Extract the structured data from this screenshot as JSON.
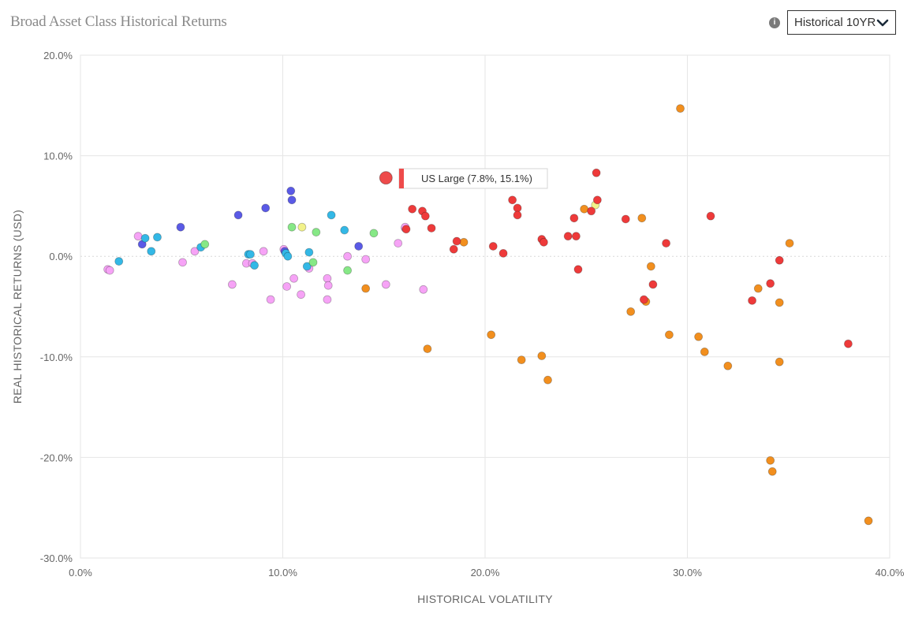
{
  "header": {
    "title": "Broad Asset Class Historical Returns",
    "info_icon": "info-icon",
    "period_select": {
      "selected": "Historical 10YR",
      "icon": "chevron-down-icon"
    }
  },
  "tooltip": {
    "text": "US Large (7.8%, 15.1%)",
    "color": "#ee4b4b"
  },
  "colors": {
    "pink": "#f6a3f6",
    "blue": "#5a5ae6",
    "cyan": "#33b8e6",
    "green": "#86e886",
    "yellow": "#f2f28a",
    "orange": "#f28f1e",
    "red": "#ee3a3a"
  },
  "chart_data": {
    "type": "scatter",
    "title": "Broad Asset Class Historical Returns",
    "xlabel": "HISTORICAL VOLATILITY",
    "ylabel": "REAL HISTORICAL RETURNS (USD)",
    "xlim": [
      0,
      40
    ],
    "ylim": [
      -30,
      20
    ],
    "x_ticks": [
      "0.0%",
      "10.0%",
      "20.0%",
      "30.0%",
      "40.0%"
    ],
    "y_ticks": [
      "20.0%",
      "10.0%",
      "0.0%",
      "-10.0%",
      "-20.0%",
      "-30.0%"
    ],
    "highlighted": {
      "name": "US Large",
      "x": 15.1,
      "y": 7.8,
      "group": "red"
    },
    "series": [
      {
        "name": "pink",
        "points": [
          [
            1.35,
            -1.3
          ],
          [
            1.45,
            -1.4
          ],
          [
            2.85,
            2.0
          ],
          [
            5.05,
            -0.6
          ],
          [
            5.65,
            0.5
          ],
          [
            7.5,
            -2.8
          ],
          [
            8.2,
            -0.7
          ],
          [
            8.5,
            -0.7
          ],
          [
            9.05,
            0.5
          ],
          [
            9.4,
            -4.3
          ],
          [
            10.05,
            0.7
          ],
          [
            10.2,
            -3.0
          ],
          [
            10.55,
            -2.2
          ],
          [
            10.9,
            -3.8
          ],
          [
            11.3,
            -1.2
          ],
          [
            12.2,
            -2.2
          ],
          [
            12.25,
            -2.9
          ],
          [
            12.2,
            -4.3
          ],
          [
            13.2,
            0.0
          ],
          [
            14.1,
            -0.3
          ],
          [
            15.1,
            -2.8
          ],
          [
            15.7,
            1.3
          ],
          [
            16.05,
            2.8
          ],
          [
            16.05,
            2.9
          ],
          [
            16.95,
            -3.3
          ]
        ]
      },
      {
        "name": "blue",
        "points": [
          [
            3.05,
            1.2
          ],
          [
            4.95,
            2.9
          ],
          [
            7.8,
            4.1
          ],
          [
            9.15,
            4.8
          ],
          [
            10.1,
            0.5
          ],
          [
            10.4,
            6.5
          ],
          [
            10.45,
            5.6
          ],
          [
            13.75,
            1.0
          ]
        ]
      },
      {
        "name": "cyan",
        "points": [
          [
            1.9,
            -0.5
          ],
          [
            3.2,
            1.8
          ],
          [
            3.5,
            0.5
          ],
          [
            3.8,
            1.9
          ],
          [
            5.95,
            0.9
          ],
          [
            8.3,
            0.2
          ],
          [
            8.4,
            0.2
          ],
          [
            8.6,
            -0.9
          ],
          [
            10.15,
            0.3
          ],
          [
            10.25,
            0.0
          ],
          [
            11.2,
            -1.0
          ],
          [
            11.3,
            0.4
          ],
          [
            12.4,
            4.1
          ],
          [
            13.05,
            2.6
          ]
        ]
      },
      {
        "name": "green",
        "points": [
          [
            6.15,
            1.2
          ],
          [
            10.45,
            2.9
          ],
          [
            11.5,
            -0.6
          ],
          [
            11.65,
            2.4
          ],
          [
            13.2,
            -1.4
          ],
          [
            14.5,
            2.3
          ]
        ]
      },
      {
        "name": "yellow",
        "points": [
          [
            10.95,
            2.9
          ],
          [
            25.45,
            5.1
          ]
        ]
      },
      {
        "name": "orange",
        "points": [
          [
            14.1,
            -3.2
          ],
          [
            17.15,
            -9.2
          ],
          [
            18.95,
            1.4
          ],
          [
            20.3,
            -7.8
          ],
          [
            21.8,
            -10.3
          ],
          [
            22.8,
            -9.9
          ],
          [
            23.1,
            -12.3
          ],
          [
            24.9,
            4.7
          ],
          [
            27.2,
            -5.5
          ],
          [
            27.75,
            3.8
          ],
          [
            27.95,
            -4.5
          ],
          [
            28.2,
            -1.0
          ],
          [
            29.1,
            -7.8
          ],
          [
            29.65,
            14.7
          ],
          [
            30.55,
            -8.0
          ],
          [
            30.85,
            -9.5
          ],
          [
            32.0,
            -10.9
          ],
          [
            33.5,
            -3.2
          ],
          [
            34.1,
            -20.3
          ],
          [
            34.2,
            -21.4
          ],
          [
            34.55,
            -4.6
          ],
          [
            34.55,
            -10.5
          ],
          [
            35.05,
            1.3
          ],
          [
            38.95,
            -26.3
          ]
        ]
      },
      {
        "name": "red",
        "points": [
          [
            16.1,
            2.7
          ],
          [
            16.4,
            4.7
          ],
          [
            16.9,
            4.5
          ],
          [
            17.05,
            4.0
          ],
          [
            17.35,
            2.8
          ],
          [
            18.45,
            0.7
          ],
          [
            18.6,
            1.5
          ],
          [
            20.4,
            1.0
          ],
          [
            20.9,
            0.3
          ],
          [
            21.35,
            5.6
          ],
          [
            21.6,
            4.8
          ],
          [
            21.6,
            4.1
          ],
          [
            22.8,
            1.7
          ],
          [
            22.9,
            1.4
          ],
          [
            24.1,
            2.0
          ],
          [
            24.4,
            3.8
          ],
          [
            24.5,
            2.0
          ],
          [
            24.6,
            -1.3
          ],
          [
            25.25,
            4.5
          ],
          [
            25.5,
            8.3
          ],
          [
            25.55,
            5.6
          ],
          [
            26.95,
            3.7
          ],
          [
            27.85,
            -4.3
          ],
          [
            28.3,
            -2.8
          ],
          [
            28.95,
            1.3
          ],
          [
            31.15,
            4.0
          ],
          [
            33.2,
            -4.4
          ],
          [
            34.1,
            -2.7
          ],
          [
            34.55,
            -0.4
          ],
          [
            37.95,
            -8.7
          ]
        ]
      }
    ]
  }
}
